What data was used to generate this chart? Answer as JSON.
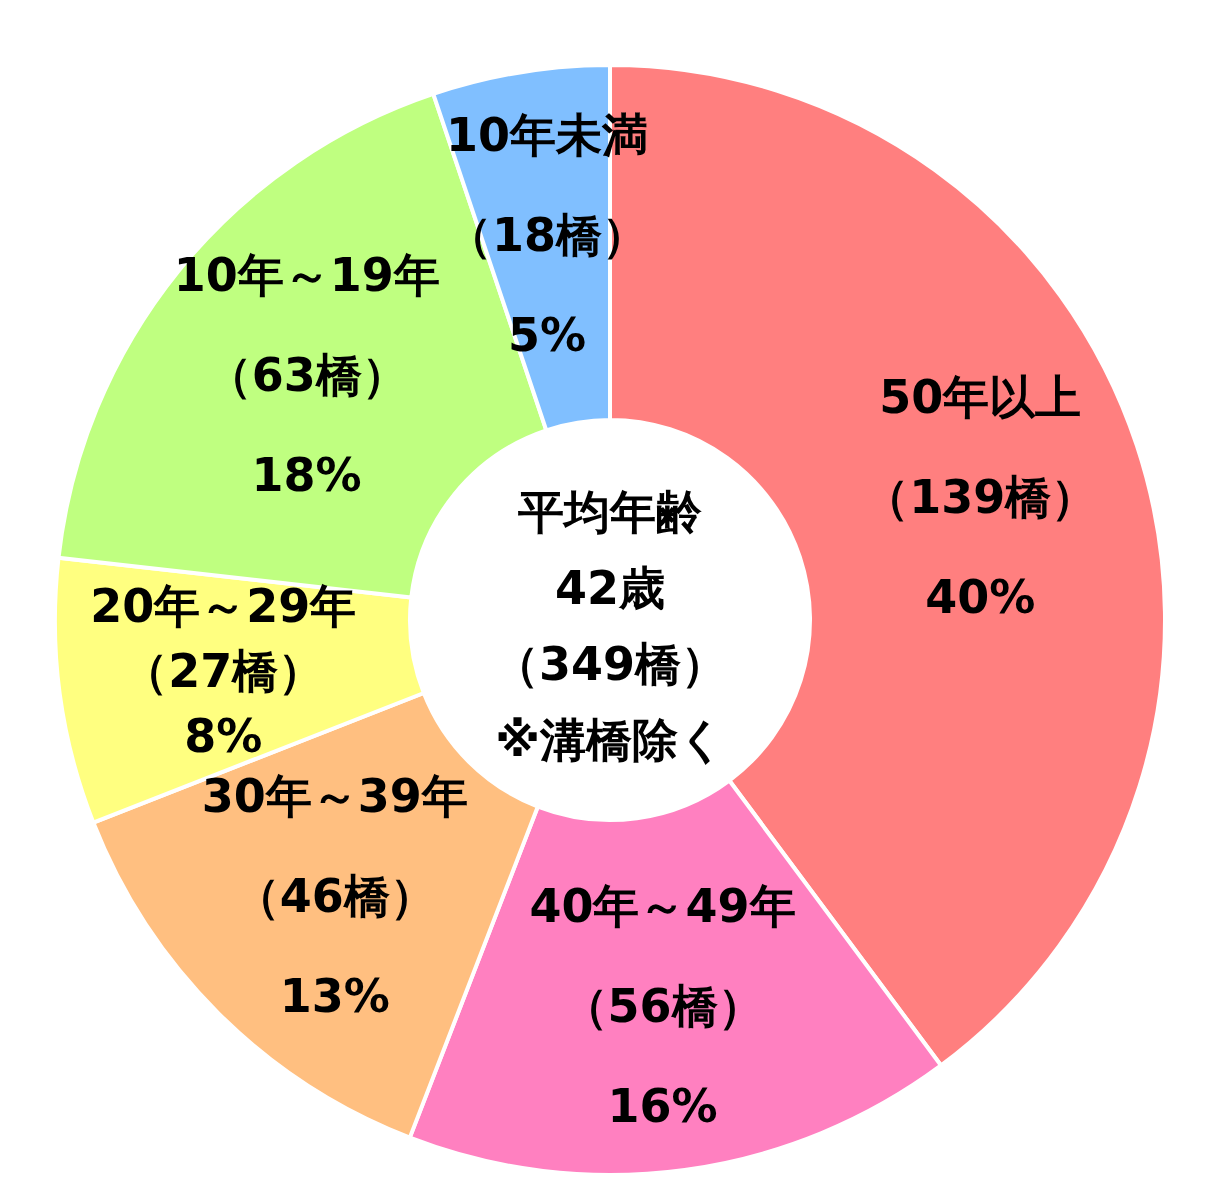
{
  "chart_data": {
    "type": "donut",
    "categories": [
      "50年以上",
      "40年～49年",
      "30年～39年",
      "20年～29年",
      "10年～19年",
      "10年未満"
    ],
    "values": [
      139,
      56,
      46,
      27,
      63,
      18
    ],
    "value_labels": [
      "（139橋）\n40%",
      "（56橋）\n16%",
      "（46橋）\n13%",
      "（27橋）\n8%",
      "（63橋）\n18%",
      "（18橋）\n5%"
    ],
    "colors": [
      "#ff7f7f",
      "#ff80c0",
      "#ffbf80",
      "#ffff80",
      "#bfff80",
      "#80bfff"
    ],
    "annotations": [
      "平均年齢",
      "42歳",
      "（349橋）",
      "※溝橋除く"
    ]
  }
}
